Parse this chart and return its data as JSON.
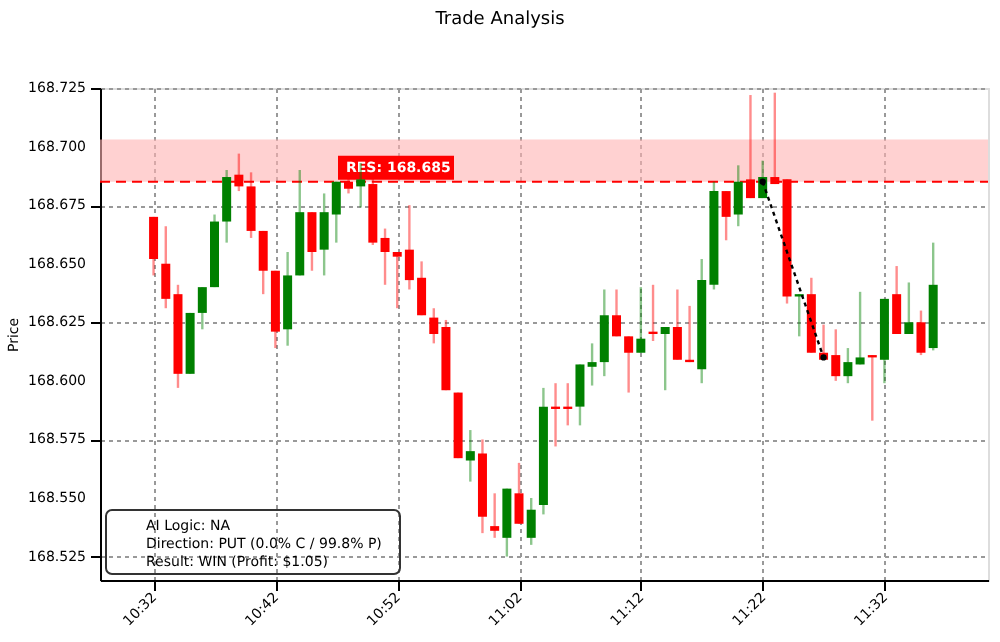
{
  "chart_data": {
    "type": "candlestick",
    "title": "Trade Analysis",
    "ylabel": "Price",
    "x": [
      10.5333,
      10.55,
      10.5667,
      10.5833,
      10.6,
      10.6167,
      10.6333,
      10.65,
      10.6667,
      10.6833,
      10.7,
      10.7167,
      10.7333,
      10.75,
      10.7667,
      10.7833,
      10.8,
      10.8167,
      10.8333,
      10.85,
      10.8667,
      10.8833,
      10.9,
      10.9167,
      10.9333,
      10.95,
      10.9667,
      10.9833,
      11,
      11.0167,
      11.0333,
      11.05,
      11.0667,
      11.0833,
      11.1,
      11.1167,
      11.1333,
      11.15,
      11.1667,
      11.1833,
      11.2,
      11.2167,
      11.2333,
      11.25,
      11.2667,
      11.2833,
      11.3,
      11.3167,
      11.3333,
      11.35,
      11.3667,
      11.3833,
      11.4,
      11.4167,
      11.4333,
      11.45,
      11.4667,
      11.4833,
      11.5,
      11.5167,
      11.5333,
      11.55,
      11.5667,
      11.5833,
      11.6
    ],
    "ohlc": [
      [
        168.67,
        168.67,
        168.645,
        168.652
      ],
      [
        168.65,
        168.666,
        168.631,
        168.635
      ],
      [
        168.637,
        168.641,
        168.597,
        168.603
      ],
      [
        168.603,
        168.629,
        168.603,
        168.629
      ],
      [
        168.629,
        168.64,
        168.622,
        168.64
      ],
      [
        168.64,
        168.671,
        168.64,
        168.668
      ],
      [
        168.668,
        168.69,
        168.659,
        168.687
      ],
      [
        168.688,
        168.697,
        168.681,
        168.683
      ],
      [
        168.683,
        168.689,
        168.661,
        168.664
      ],
      [
        168.664,
        168.664,
        168.637,
        168.647
      ],
      [
        168.647,
        168.647,
        168.614,
        168.621
      ],
      [
        168.622,
        168.655,
        168.615,
        168.645
      ],
      [
        168.645,
        168.69,
        168.645,
        168.672
      ],
      [
        168.672,
        168.672,
        168.647,
        168.655
      ],
      [
        168.656,
        168.68,
        168.645,
        168.672
      ],
      [
        168.671,
        168.685,
        168.659,
        168.685
      ],
      [
        168.685,
        168.688,
        168.68,
        168.682
      ],
      [
        168.683,
        168.693,
        168.674,
        168.686
      ],
      [
        168.684,
        168.688,
        168.658,
        168.659
      ],
      [
        168.661,
        168.665,
        168.641,
        168.655
      ],
      [
        168.655,
        168.655,
        168.631,
        168.653
      ],
      [
        168.656,
        168.675,
        168.639,
        168.643
      ],
      [
        168.644,
        168.651,
        168.628,
        168.628
      ],
      [
        168.627,
        168.631,
        168.616,
        168.62
      ],
      [
        168.623,
        168.626,
        168.596,
        168.596
      ],
      [
        168.595,
        168.595,
        168.567,
        168.567
      ],
      [
        168.566,
        168.579,
        168.557,
        168.57
      ],
      [
        168.569,
        168.575,
        168.535,
        168.542
      ],
      [
        168.538,
        168.552,
        168.533,
        168.536
      ],
      [
        168.533,
        168.554,
        168.525,
        168.554
      ],
      [
        168.552,
        168.565,
        168.539,
        168.539
      ],
      [
        168.533,
        168.55,
        168.53,
        168.545
      ],
      [
        168.547,
        168.597,
        168.543,
        168.589
      ],
      [
        168.589,
        168.599,
        168.572,
        168.588
      ],
      [
        168.589,
        168.599,
        168.581,
        168.588
      ],
      [
        168.589,
        168.607,
        168.581,
        168.607
      ],
      [
        168.606,
        168.616,
        168.598,
        168.608
      ],
      [
        168.608,
        168.639,
        168.602,
        168.628
      ],
      [
        168.628,
        168.639,
        168.619,
        168.619
      ],
      [
        168.619,
        168.619,
        168.595,
        168.612
      ],
      [
        168.612,
        168.64,
        168.612,
        168.618
      ],
      [
        168.621,
        168.641,
        168.617,
        168.62
      ],
      [
        168.62,
        168.623,
        168.596,
        168.623
      ],
      [
        168.623,
        168.639,
        168.609,
        168.609
      ],
      [
        168.609,
        168.632,
        168.608,
        168.608
      ],
      [
        168.605,
        168.652,
        168.599,
        168.643
      ],
      [
        168.641,
        168.685,
        168.639,
        168.681
      ],
      [
        168.681,
        168.681,
        168.66,
        168.67
      ],
      [
        168.671,
        168.692,
        168.666,
        168.685
      ],
      [
        168.686,
        168.722,
        168.678,
        168.678
      ],
      [
        168.678,
        168.694,
        168.678,
        168.687
      ],
      [
        168.687,
        168.723,
        168.684,
        168.684
      ],
      [
        168.686,
        168.686,
        168.633,
        168.636
      ],
      [
        168.636,
        168.637,
        168.619,
        168.637
      ],
      [
        168.637,
        168.644,
        168.612,
        168.612
      ],
      [
        168.612,
        168.624,
        168.609,
        168.609
      ],
      [
        168.611,
        168.622,
        168.6,
        168.602
      ],
      [
        168.602,
        168.614,
        168.599,
        168.608
      ],
      [
        168.607,
        168.638,
        168.607,
        168.61
      ],
      [
        168.611,
        168.611,
        168.583,
        168.61
      ],
      [
        168.609,
        168.635,
        168.599,
        168.635
      ],
      [
        168.637,
        168.649,
        168.62,
        168.62
      ],
      [
        168.62,
        168.642,
        168.62,
        168.625
      ],
      [
        168.625,
        168.63,
        168.611,
        168.612
      ],
      [
        168.614,
        168.659,
        168.613,
        168.641
      ]
    ],
    "colors": [
      "#ff0000",
      "#ff0000",
      "#ff0000",
      "#008000",
      "#008000",
      "#008000",
      "#008000",
      "#ff0000",
      "#ff0000",
      "#ff0000",
      "#ff0000",
      "#008000",
      "#008000",
      "#ff0000",
      "#008000",
      "#008000",
      "#ff0000",
      "#008000",
      "#ff0000",
      "#ff0000",
      "#ff0000",
      "#ff0000",
      "#ff0000",
      "#ff0000",
      "#ff0000",
      "#ff0000",
      "#008000",
      "#ff0000",
      "#ff0000",
      "#008000",
      "#ff0000",
      "#008000",
      "#008000",
      "#ff0000",
      "#ff0000",
      "#008000",
      "#008000",
      "#008000",
      "#ff0000",
      "#ff0000",
      "#008000",
      "#ff0000",
      "#008000",
      "#ff0000",
      "#ff0000",
      "#008000",
      "#008000",
      "#ff0000",
      "#008000",
      "#ff0000",
      "#008000",
      "#ff0000",
      "#ff0000",
      "#008000",
      "#ff0000",
      "#ff0000",
      "#ff0000",
      "#008000",
      "#008000",
      "#ff0000",
      "#008000",
      "#ff0000",
      "#008000",
      "#ff0000",
      "#008000"
    ],
    "series": [
      {
        "type": "line",
        "x": [
          11.3667,
          11.45
        ],
        "values": [
          168.685,
          168.61
        ],
        "color": "#000000",
        "line_style": "dotted",
        "marker": "circle"
      }
    ],
    "ref_lines": [
      {
        "axis": "y",
        "value": 168.685,
        "label": "RES: 168.685",
        "color": "#ff0000",
        "line_style": "dashed"
      }
    ],
    "bands": [
      {
        "axis": "y",
        "from": 168.685,
        "to": 168.703,
        "color": "#ffb3b3"
      }
    ],
    "annotations": [
      "AI Logic: NA",
      "Direction: PUT (0.0% C / 99.8% P)",
      "Result: WIN (Profit: $1.05)"
    ],
    "xlim": [
      10.46,
      11.675
    ],
    "xticks": [
      {
        "value": 10.5333,
        "label": "10:32"
      },
      {
        "value": 10.7,
        "label": "10:42"
      },
      {
        "value": 10.8667,
        "label": "10:52"
      },
      {
        "value": 11.0333,
        "label": "11:02"
      },
      {
        "value": 11.2,
        "label": "11:12"
      },
      {
        "value": 11.3667,
        "label": "11:22"
      },
      {
        "value": 11.5333,
        "label": "11:32"
      }
    ],
    "ylim": [
      168.515,
      168.725
    ],
    "yticks": [
      168.525,
      {
        "value": 168.55,
        "label": "168.550"
      },
      168.575,
      {
        "value": 168.6,
        "label": "168.600"
      },
      168.625,
      {
        "value": 168.65,
        "label": "168.650"
      },
      168.675,
      {
        "value": 168.7,
        "label": "168.700"
      },
      168.725
    ],
    "grid": true
  }
}
